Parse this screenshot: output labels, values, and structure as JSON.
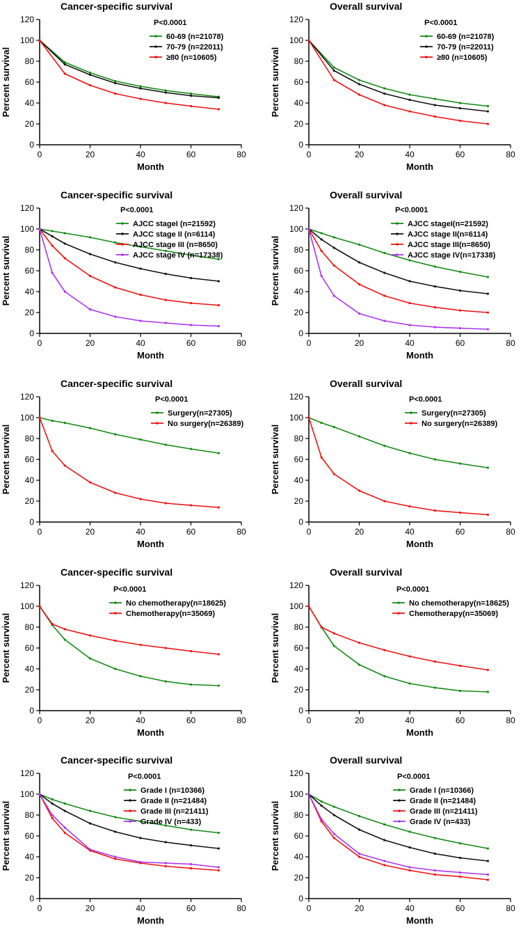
{
  "figure": "Kaplan-Meier survival curves",
  "colors": {
    "green": "#118a11",
    "black": "#111111",
    "red": "#ee1111",
    "purple": "#aa33ee"
  },
  "chart_data": [
    {
      "type": "line",
      "title": "Cancer-specific survival",
      "pvalue": "P<0.0001",
      "xlabel": "Month",
      "ylabel": "Percent survival",
      "xlim": [
        0,
        80
      ],
      "ylim": [
        0,
        120
      ],
      "xticks": [
        "0",
        "20",
        "40",
        "60",
        "80"
      ],
      "yticks": [
        "0",
        "20",
        "40",
        "60",
        "80",
        "100",
        "120"
      ],
      "x": [
        0,
        10,
        20,
        30,
        40,
        50,
        60,
        71
      ],
      "series": [
        {
          "name": "60-69",
          "label": "60-69   (n=21078)",
          "color": "#118a11",
          "values": [
            100,
            79,
            69,
            61,
            56,
            52,
            49,
            46
          ]
        },
        {
          "name": "70-79",
          "label": "70-79   (n=22011)",
          "color": "#111111",
          "values": [
            100,
            77,
            67,
            59,
            54,
            50,
            47,
            45
          ]
        },
        {
          "name": "≥80",
          "label": "≥80      (n=10605)",
          "color": "#ee1111",
          "values": [
            100,
            68,
            57,
            49,
            44,
            40,
            37,
            34
          ]
        }
      ]
    },
    {
      "type": "line",
      "title": "Overall survival",
      "pvalue": "P<0.0001",
      "xlabel": "Month",
      "ylabel": "Percent survival",
      "xlim": [
        0,
        80
      ],
      "ylim": [
        0,
        120
      ],
      "xticks": [
        "0",
        "20",
        "40",
        "60",
        "80"
      ],
      "yticks": [
        "0",
        "20",
        "40",
        "60",
        "80",
        "100",
        "120"
      ],
      "x": [
        0,
        10,
        20,
        30,
        40,
        50,
        60,
        71
      ],
      "series": [
        {
          "name": "60-69",
          "label": "60-69   (n=21078)",
          "color": "#118a11",
          "values": [
            100,
            74,
            62,
            54,
            48,
            44,
            40,
            37
          ]
        },
        {
          "name": "70-79",
          "label": "70-79   (n=22011)",
          "color": "#111111",
          "values": [
            100,
            71,
            58,
            49,
            43,
            38,
            35,
            32
          ]
        },
        {
          "name": "≥80",
          "label": "≥80      (n=10605)",
          "color": "#ee1111",
          "values": [
            100,
            62,
            48,
            38,
            32,
            27,
            23,
            20
          ]
        }
      ]
    },
    {
      "type": "line",
      "title": "Cancer-specific survival",
      "pvalue": "P<0.0001",
      "xlabel": "Month",
      "ylabel": "Percent survival",
      "xlim": [
        0,
        80
      ],
      "ylim": [
        0,
        120
      ],
      "xticks": [
        "0",
        "20",
        "40",
        "60",
        "80"
      ],
      "yticks": [
        "0",
        "20",
        "40",
        "60",
        "80",
        "100",
        "120"
      ],
      "x": [
        0,
        5,
        10,
        20,
        30,
        40,
        50,
        60,
        71
      ],
      "series": [
        {
          "name": "AJCC stageI",
          "label": "AJCC stageI  (n=21592)",
          "color": "#118a11",
          "values": [
            100,
            98,
            96,
            92,
            87,
            83,
            79,
            75,
            71
          ]
        },
        {
          "name": "AJCC stageII",
          "label": "AJCC stage II  (n=6114)",
          "color": "#111111",
          "values": [
            100,
            93,
            86,
            76,
            68,
            62,
            57,
            53,
            50
          ]
        },
        {
          "name": "AJCC stageIII",
          "label": "AJCC stage III (n=8650)",
          "color": "#ee1111",
          "values": [
            100,
            84,
            72,
            55,
            44,
            37,
            32,
            29,
            27
          ]
        },
        {
          "name": "AJCC stageIV",
          "label": "AJCC stage IV  (n=17338)",
          "color": "#aa33ee",
          "values": [
            100,
            58,
            40,
            23,
            16,
            12,
            10,
            8,
            7
          ]
        }
      ]
    },
    {
      "type": "line",
      "title": "Overall survival",
      "pvalue": "P<0.0001",
      "xlabel": "Month",
      "ylabel": "Percent survival",
      "xlim": [
        0,
        80
      ],
      "ylim": [
        0,
        120
      ],
      "xticks": [
        "0",
        "20",
        "40",
        "60",
        "80"
      ],
      "yticks": [
        "0",
        "20",
        "40",
        "60",
        "80",
        "100",
        "120"
      ],
      "x": [
        0,
        5,
        10,
        20,
        30,
        40,
        50,
        60,
        71
      ],
      "series": [
        {
          "name": "AJCC stageI",
          "label": "AJCC stageI(n=21592)",
          "color": "#118a11",
          "values": [
            100,
            96,
            92,
            85,
            77,
            70,
            64,
            59,
            54
          ]
        },
        {
          "name": "AJCC stageII",
          "label": "AJCC stage II(n=6114)",
          "color": "#111111",
          "values": [
            100,
            90,
            82,
            68,
            58,
            50,
            45,
            41,
            38
          ]
        },
        {
          "name": "AJCC stageIII",
          "label": "AJCC stage III(n=8650)",
          "color": "#ee1111",
          "values": [
            100,
            79,
            65,
            47,
            36,
            29,
            25,
            22,
            20
          ]
        },
        {
          "name": "AJCC stageIV",
          "label": "AJCC stage IV(n=17338)",
          "color": "#aa33ee",
          "values": [
            100,
            55,
            36,
            19,
            12,
            8,
            6,
            5,
            4
          ]
        }
      ]
    },
    {
      "type": "line",
      "title": "Cancer-specific survival",
      "pvalue": "P<0.0001",
      "xlabel": "Month",
      "ylabel": "Percent survival",
      "xlim": [
        0,
        80
      ],
      "ylim": [
        0,
        120
      ],
      "xticks": [
        "0",
        "20",
        "40",
        "60",
        "80"
      ],
      "yticks": [
        "0",
        "20",
        "40",
        "60",
        "80",
        "100",
        "120"
      ],
      "x": [
        0,
        5,
        10,
        20,
        30,
        40,
        50,
        60,
        71
      ],
      "series": [
        {
          "name": "Surgery",
          "label": "Surgery(n=27305)",
          "color": "#118a11",
          "values": [
            100,
            97,
            95,
            90,
            84,
            79,
            74,
            70,
            66
          ]
        },
        {
          "name": "No surgery",
          "label": "No surgery(n=26389)",
          "color": "#ee1111",
          "values": [
            100,
            68,
            54,
            38,
            28,
            22,
            18,
            16,
            14
          ]
        }
      ]
    },
    {
      "type": "line",
      "title": "Overall survival",
      "pvalue": "P<0.0001",
      "xlabel": "Month",
      "ylabel": "Percent survival",
      "xlim": [
        0,
        80
      ],
      "ylim": [
        0,
        120
      ],
      "xticks": [
        "0",
        "20",
        "40",
        "60",
        "80"
      ],
      "yticks": [
        "0",
        "20",
        "40",
        "60",
        "80",
        "100",
        "120"
      ],
      "x": [
        0,
        5,
        10,
        20,
        30,
        40,
        50,
        60,
        71
      ],
      "series": [
        {
          "name": "Surgery",
          "label": "Surgery(n=27305)",
          "color": "#118a11",
          "values": [
            100,
            95,
            91,
            82,
            73,
            66,
            60,
            56,
            52
          ]
        },
        {
          "name": "No surgery",
          "label": "No surgery(n=26389)",
          "color": "#ee1111",
          "values": [
            100,
            62,
            46,
            30,
            20,
            15,
            11,
            9,
            7
          ]
        }
      ]
    },
    {
      "type": "line",
      "title": "Cancer-specific survival",
      "pvalue": "P<0.0001",
      "xlabel": "Month",
      "ylabel": "Percent survival",
      "xlim": [
        0,
        80
      ],
      "ylim": [
        0,
        120
      ],
      "xticks": [
        "0",
        "20",
        "40",
        "60",
        "80"
      ],
      "yticks": [
        "0",
        "20",
        "40",
        "60",
        "80",
        "100",
        "120"
      ],
      "x": [
        0,
        5,
        10,
        20,
        30,
        40,
        50,
        60,
        71
      ],
      "series": [
        {
          "name": "No chemotherapy",
          "label": "No chemotherapy(n=18625)",
          "color": "#118a11",
          "values": [
            100,
            82,
            68,
            50,
            40,
            33,
            28,
            25,
            24
          ]
        },
        {
          "name": "Chemotherapy",
          "label": "Chemotherapy(n=35069)",
          "color": "#ee1111",
          "values": [
            100,
            83,
            78,
            72,
            67,
            63,
            60,
            57,
            54
          ]
        }
      ]
    },
    {
      "type": "line",
      "title": "Overall survival",
      "pvalue": "P<0.0001",
      "xlabel": "Month",
      "ylabel": "Percent survival",
      "xlim": [
        0,
        80
      ],
      "ylim": [
        0,
        120
      ],
      "xticks": [
        "0",
        "20",
        "40",
        "60",
        "80"
      ],
      "yticks": [
        "0",
        "20",
        "40",
        "60",
        "80",
        "100",
        "120"
      ],
      "x": [
        0,
        5,
        10,
        20,
        30,
        40,
        50,
        60,
        71
      ],
      "series": [
        {
          "name": "No chemotherapy",
          "label": "No chemotherapy(n=18625)",
          "color": "#118a11",
          "values": [
            100,
            80,
            62,
            44,
            33,
            26,
            22,
            19,
            18
          ]
        },
        {
          "name": "Chemotherapy",
          "label": "Chemotherapy(n=35069)",
          "color": "#ee1111",
          "values": [
            100,
            80,
            74,
            65,
            58,
            52,
            47,
            43,
            39
          ]
        }
      ]
    },
    {
      "type": "line",
      "title": "Cancer-specific survival",
      "pvalue": "P<0.0001",
      "xlabel": "Month",
      "ylabel": "Percent survival",
      "xlim": [
        0,
        80
      ],
      "ylim": [
        0,
        120
      ],
      "xticks": [
        "0",
        "20",
        "40",
        "60",
        "80"
      ],
      "yticks": [
        "0",
        "20",
        "40",
        "60",
        "80",
        "100",
        "120"
      ],
      "x": [
        0,
        5,
        10,
        20,
        30,
        40,
        50,
        60,
        71
      ],
      "series": [
        {
          "name": "Grade I",
          "label": "Grade I  (n=10366)",
          "color": "#118a11",
          "values": [
            100,
            95,
            91,
            84,
            78,
            74,
            70,
            66,
            63
          ]
        },
        {
          "name": "Grade II",
          "label": "Grade II  (n=21484)",
          "color": "#111111",
          "values": [
            100,
            91,
            84,
            72,
            64,
            58,
            54,
            51,
            48
          ]
        },
        {
          "name": "Grade III",
          "label": "Grade III  (n=21411)",
          "color": "#ee1111",
          "values": [
            100,
            77,
            63,
            46,
            38,
            34,
            31,
            29,
            27
          ]
        },
        {
          "name": "Grade IV",
          "label": "Grade IV  (n=433)",
          "color": "#aa33ee",
          "values": [
            100,
            80,
            68,
            47,
            40,
            35,
            34,
            33,
            30
          ]
        }
      ]
    },
    {
      "type": "line",
      "title": "Overall survival",
      "pvalue": "P<0.0001",
      "xlabel": "Month",
      "ylabel": "Percent survival",
      "xlim": [
        0,
        80
      ],
      "ylim": [
        0,
        120
      ],
      "xticks": [
        "0",
        "20",
        "40",
        "60",
        "80"
      ],
      "yticks": [
        "0",
        "20",
        "40",
        "60",
        "80",
        "100",
        "120"
      ],
      "x": [
        0,
        5,
        10,
        20,
        30,
        40,
        50,
        60,
        71
      ],
      "series": [
        {
          "name": "Grade I",
          "label": "Grade I  (n=10366)",
          "color": "#118a11",
          "values": [
            100,
            93,
            88,
            79,
            71,
            64,
            58,
            53,
            48
          ]
        },
        {
          "name": "Grade II",
          "label": "Grade II  (n=21484)",
          "color": "#111111",
          "values": [
            100,
            89,
            80,
            66,
            56,
            49,
            43,
            39,
            36
          ]
        },
        {
          "name": "Grade III",
          "label": "Grade III  (n=21411)",
          "color": "#ee1111",
          "values": [
            100,
            74,
            58,
            40,
            32,
            27,
            23,
            21,
            18
          ]
        },
        {
          "name": "Grade IV",
          "label": "Grade IV  (n=433)",
          "color": "#aa33ee",
          "values": [
            100,
            76,
            62,
            43,
            36,
            30,
            27,
            25,
            23
          ]
        }
      ]
    }
  ]
}
